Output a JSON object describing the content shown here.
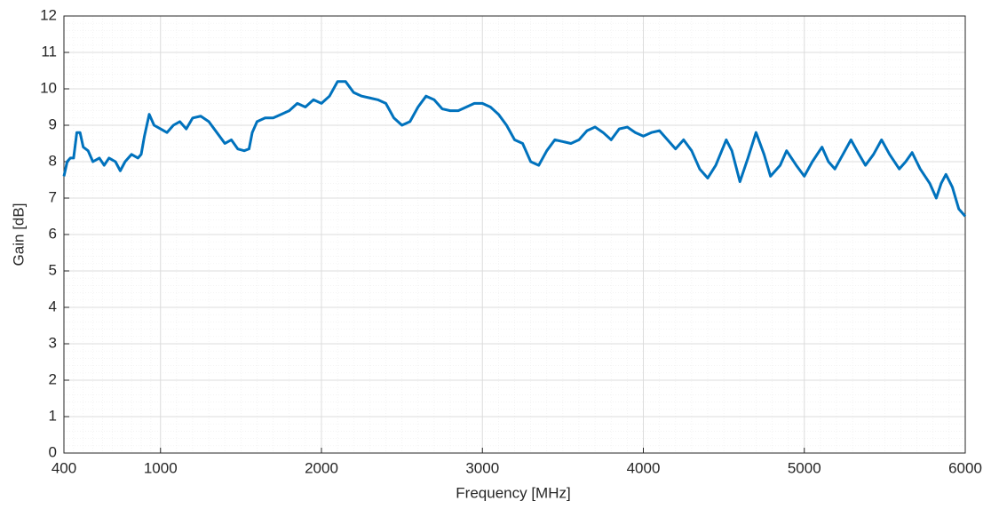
{
  "chart_data": {
    "type": "line",
    "xlabel": "Frequency [MHz]",
    "ylabel": "Gain [dB]",
    "x": [
      400,
      420,
      440,
      460,
      480,
      500,
      520,
      550,
      580,
      620,
      650,
      680,
      720,
      750,
      780,
      820,
      860,
      880,
      900,
      930,
      960,
      1000,
      1040,
      1080,
      1120,
      1160,
      1200,
      1250,
      1300,
      1350,
      1400,
      1440,
      1480,
      1520,
      1550,
      1570,
      1600,
      1650,
      1700,
      1750,
      1800,
      1850,
      1900,
      1950,
      2000,
      2050,
      2100,
      2150,
      2200,
      2250,
      2300,
      2350,
      2400,
      2450,
      2500,
      2550,
      2600,
      2650,
      2700,
      2750,
      2800,
      2850,
      2900,
      2950,
      3000,
      3050,
      3100,
      3150,
      3200,
      3250,
      3300,
      3350,
      3400,
      3450,
      3500,
      3550,
      3600,
      3650,
      3700,
      3750,
      3800,
      3850,
      3900,
      3950,
      4000,
      4050,
      4100,
      4150,
      4200,
      4250,
      4300,
      4350,
      4400,
      4450,
      4515,
      4550,
      4600,
      4650,
      4700,
      4750,
      4790,
      4850,
      4890,
      4950,
      5000,
      5050,
      5110,
      5150,
      5190,
      5240,
      5290,
      5340,
      5380,
      5430,
      5480,
      5530,
      5590,
      5630,
      5670,
      5720,
      5780,
      5820,
      5850,
      5880,
      5920,
      5960,
      6000
    ],
    "series": [
      {
        "name": "Gain",
        "color": "#0072bd",
        "values": [
          7.6,
          8.0,
          8.1,
          8.1,
          8.8,
          8.8,
          8.4,
          8.3,
          8.0,
          8.1,
          7.9,
          8.1,
          8.0,
          7.75,
          8.0,
          8.2,
          8.1,
          8.2,
          8.7,
          9.3,
          9.0,
          8.9,
          8.8,
          9.0,
          9.1,
          8.9,
          9.2,
          9.25,
          9.1,
          8.8,
          8.5,
          8.6,
          8.35,
          8.3,
          8.35,
          8.8,
          9.1,
          9.2,
          9.2,
          9.3,
          9.4,
          9.6,
          9.5,
          9.7,
          9.6,
          9.8,
          10.2,
          10.2,
          9.9,
          9.8,
          9.75,
          9.7,
          9.6,
          9.2,
          9.0,
          9.1,
          9.5,
          9.8,
          9.7,
          9.45,
          9.4,
          9.4,
          9.5,
          9.6,
          9.6,
          9.5,
          9.3,
          9.0,
          8.6,
          8.5,
          8.0,
          7.9,
          8.3,
          8.6,
          8.55,
          8.5,
          8.6,
          8.85,
          8.95,
          8.8,
          8.6,
          8.9,
          8.95,
          8.8,
          8.7,
          8.8,
          8.85,
          8.6,
          8.35,
          8.6,
          8.3,
          7.8,
          7.55,
          7.9,
          8.6,
          8.3,
          7.45,
          8.1,
          8.8,
          8.2,
          7.6,
          7.9,
          8.3,
          7.9,
          7.6,
          8.0,
          8.4,
          8.0,
          7.8,
          8.2,
          8.6,
          8.2,
          7.9,
          8.2,
          8.6,
          8.2,
          7.8,
          8.0,
          8.25,
          7.8,
          7.4,
          7.0,
          7.4,
          7.65,
          7.3,
          6.7,
          6.5
        ]
      }
    ],
    "xlim": [
      400,
      6000
    ],
    "xticks": [
      400,
      1000,
      2000,
      3000,
      4000,
      5000,
      6000
    ],
    "ylim": [
      0,
      12
    ],
    "yticks": [
      0,
      1,
      2,
      3,
      4,
      5,
      6,
      7,
      8,
      9,
      10,
      11,
      12
    ],
    "grid": true
  }
}
